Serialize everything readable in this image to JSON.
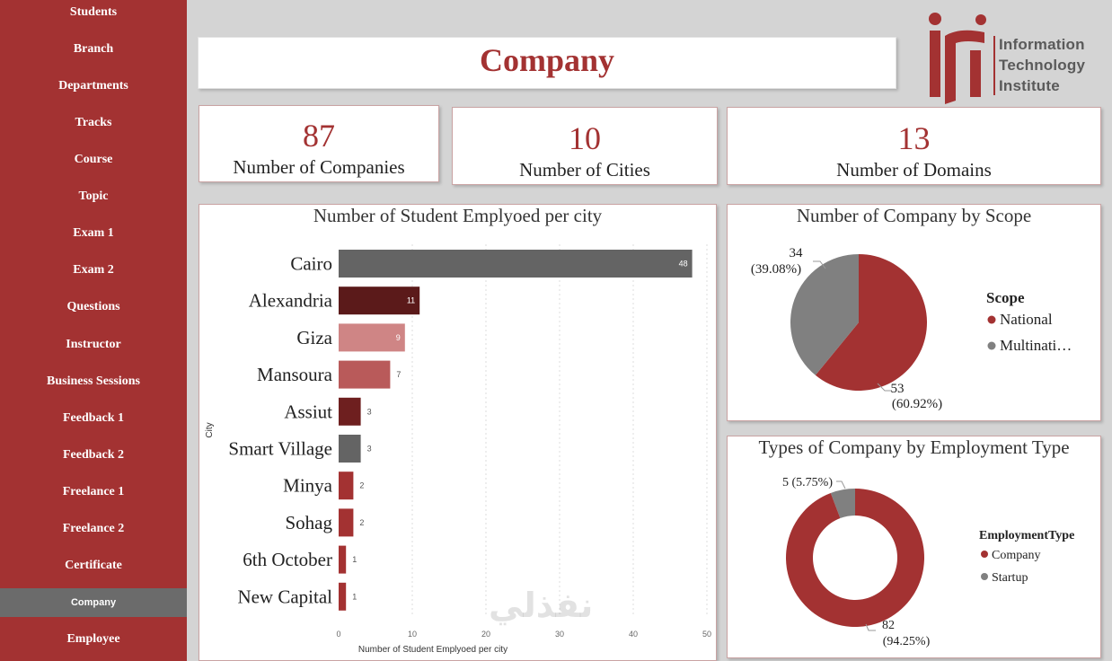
{
  "sidebar": {
    "items": [
      {
        "label": "Students",
        "active": false
      },
      {
        "label": "Branch",
        "active": false
      },
      {
        "label": "Departments",
        "active": false
      },
      {
        "label": "Tracks",
        "active": false
      },
      {
        "label": "Course",
        "active": false
      },
      {
        "label": "Topic",
        "active": false
      },
      {
        "label": "Exam 1",
        "active": false
      },
      {
        "label": "Exam 2",
        "active": false
      },
      {
        "label": "Questions",
        "active": false
      },
      {
        "label": "Instructor",
        "active": false
      },
      {
        "label": "Business Sessions",
        "active": false
      },
      {
        "label": "Feedback 1",
        "active": false
      },
      {
        "label": "Feedback 2",
        "active": false
      },
      {
        "label": "Freelance 1",
        "active": false
      },
      {
        "label": "Freelance 2",
        "active": false
      },
      {
        "label": "Certificate",
        "active": false
      },
      {
        "label": "Company",
        "active": true
      },
      {
        "label": "Employee",
        "active": false
      }
    ]
  },
  "header": {
    "title": "Company"
  },
  "logo": {
    "line1": "Information",
    "line2": "Technology",
    "line3": "Institute"
  },
  "kpis": [
    {
      "value": "87",
      "label": "Number of Companies"
    },
    {
      "value": "10",
      "label": "Number of Cities"
    },
    {
      "value": "13",
      "label": "Number of Domains"
    }
  ],
  "watermark": "نفذلي",
  "colors": {
    "brand": "#a33232",
    "gray": "#646464",
    "sidebar": "#a33232"
  },
  "chart_data": [
    {
      "type": "bar",
      "orientation": "horizontal",
      "title": "Number of Student Emplyoed per city",
      "xlabel": "Number of Student Emplyoed per city",
      "ylabel": "City",
      "categories": [
        "Cairo",
        "Alexandria",
        "Giza",
        "Mansoura",
        "Assiut",
        "Smart Village",
        "Minya",
        "Sohag",
        "6th October",
        "New Capital"
      ],
      "values": [
        48,
        11,
        9,
        7,
        3,
        3,
        2,
        2,
        1,
        1
      ],
      "bar_colors": [
        "#646464",
        "#5b1a1a",
        "#cf8585",
        "#b95a5a",
        "#6e1f1f",
        "#646464",
        "#a33232",
        "#a33232",
        "#a33232",
        "#a33232"
      ],
      "xlim": [
        0,
        50
      ],
      "xticks": [
        0,
        10,
        20,
        30,
        40,
        50
      ],
      "grid": true
    },
    {
      "type": "pie",
      "title": "Number of Company by Scope",
      "legend_title": "Scope",
      "legend_position": "right",
      "slices": [
        {
          "name": "National",
          "value": 53,
          "label_value": "53",
          "label_pct": "(60.92%)",
          "color": "#a33232"
        },
        {
          "name": "Multinational",
          "legend_text": "Multinati…",
          "value": 34,
          "label_value": "34",
          "label_pct": "(39.08%)",
          "color": "#808080"
        }
      ]
    },
    {
      "type": "donut",
      "title": "Types of Company by Employment Type",
      "legend_title": "EmploymentType",
      "legend_position": "right",
      "slices": [
        {
          "name": "Company",
          "value": 82,
          "label_value": "82",
          "label_pct": "(94.25%)",
          "color": "#a33232"
        },
        {
          "name": "Startup",
          "value": 5,
          "label": "5 (5.75%)",
          "color": "#808080"
        }
      ]
    }
  ]
}
